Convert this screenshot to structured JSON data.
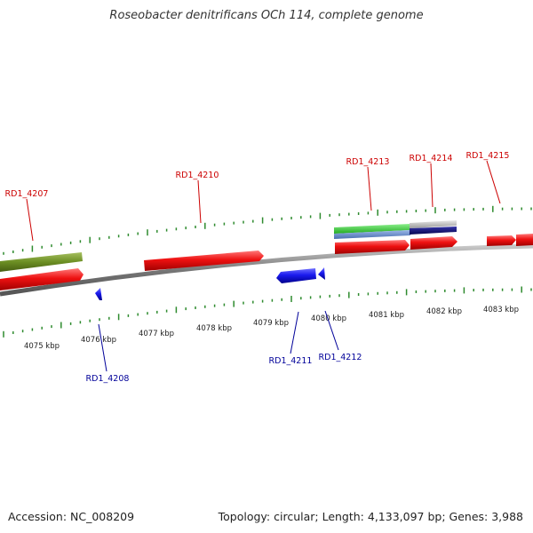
{
  "title": "Roseobacter denitrificans OCh 114, complete genome",
  "footer": {
    "accession": "Accession: NC_008209",
    "stats": "Topology: circular; Length: 4,133,097 bp; Genes: 3,988"
  },
  "colors": {
    "backbone": "#888888",
    "tick": "#2e8b2e",
    "cds": "#ee1111",
    "olive": "#6b8e23",
    "green": "#33cc33",
    "blue": "#1a1aee",
    "navy": "#0a0a7a",
    "steelblue": "#6a8fd0",
    "gray": "#bbbbbb",
    "label_top": "#cc0000",
    "label_bottom": "#000099"
  },
  "scale_labels": [
    {
      "text": "4075 kbp"
    },
    {
      "text": "4076 kbp"
    },
    {
      "text": "4077 kbp"
    },
    {
      "text": "4078 kbp"
    },
    {
      "text": "4079 kbp"
    },
    {
      "text": "4080 kbp"
    },
    {
      "text": "4081 kbp"
    },
    {
      "text": "4082 kbp"
    },
    {
      "text": "4083 kbp"
    }
  ],
  "gene_labels": {
    "top": [
      {
        "text": "RD1_4207"
      },
      {
        "text": "RD1_4210"
      },
      {
        "text": "RD1_4213"
      },
      {
        "text": "RD1_4214"
      },
      {
        "text": "RD1_4215"
      }
    ],
    "bottom": [
      {
        "text": "RD1_4208"
      },
      {
        "text": "RD1_4211"
      },
      {
        "text": "RD1_4212"
      }
    ]
  }
}
